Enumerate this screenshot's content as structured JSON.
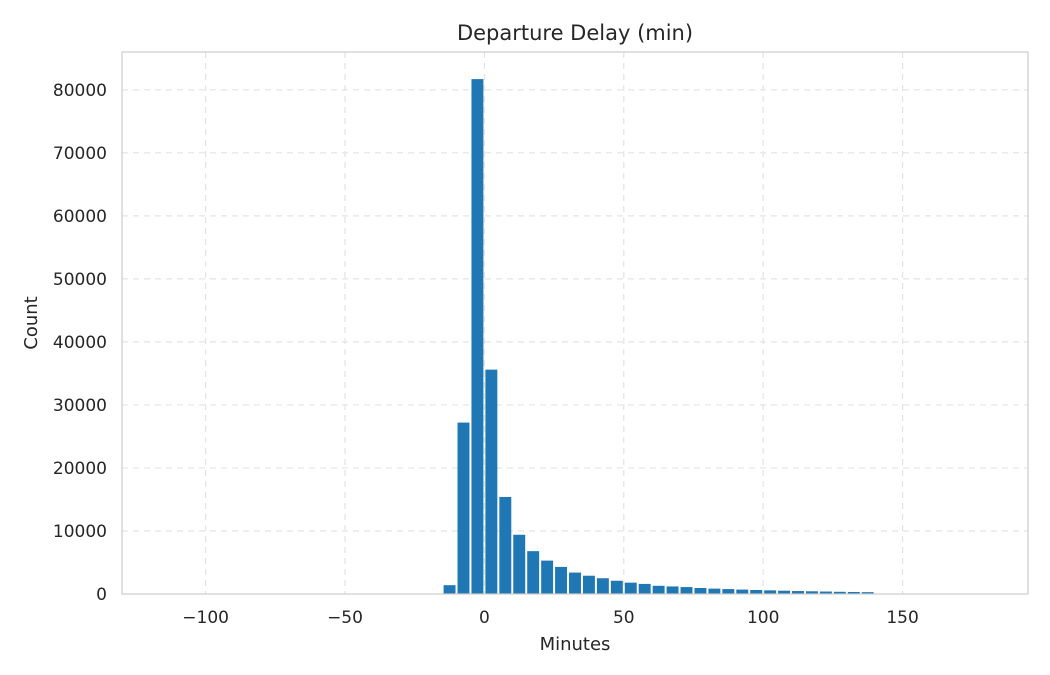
{
  "chart_data": {
    "type": "bar",
    "title": "Departure Delay (min)",
    "xlabel": "Minutes",
    "ylabel": "Count",
    "xlim": [
      -130,
      195
    ],
    "ylim": [
      0,
      86000
    ],
    "xticks": [
      -100,
      -50,
      0,
      50,
      100,
      150
    ],
    "xtick_labels": [
      "−100",
      "−50",
      "0",
      "50",
      "100",
      "150"
    ],
    "yticks": [
      0,
      10000,
      20000,
      30000,
      40000,
      50000,
      60000,
      70000,
      80000
    ],
    "ytick_labels": [
      "0",
      "10000",
      "20000",
      "30000",
      "40000",
      "50000",
      "60000",
      "70000",
      "80000"
    ],
    "grid": true,
    "bin_width": 5,
    "bins": [
      {
        "x_start": -15,
        "x_end": -10,
        "value": 1400
      },
      {
        "x_start": -10,
        "x_end": -5,
        "value": 27200
      },
      {
        "x_start": -5,
        "x_end": 0,
        "value": 81700
      },
      {
        "x_start": 0,
        "x_end": 5,
        "value": 35600
      },
      {
        "x_start": 5,
        "x_end": 10,
        "value": 15400
      },
      {
        "x_start": 10,
        "x_end": 15,
        "value": 9400
      },
      {
        "x_start": 15,
        "x_end": 20,
        "value": 6800
      },
      {
        "x_start": 20,
        "x_end": 25,
        "value": 5300
      },
      {
        "x_start": 25,
        "x_end": 30,
        "value": 4300
      },
      {
        "x_start": 30,
        "x_end": 35,
        "value": 3400
      },
      {
        "x_start": 35,
        "x_end": 40,
        "value": 2900
      },
      {
        "x_start": 40,
        "x_end": 45,
        "value": 2500
      },
      {
        "x_start": 45,
        "x_end": 50,
        "value": 2100
      },
      {
        "x_start": 50,
        "x_end": 55,
        "value": 1800
      },
      {
        "x_start": 55,
        "x_end": 60,
        "value": 1600
      },
      {
        "x_start": 60,
        "x_end": 65,
        "value": 1300
      },
      {
        "x_start": 65,
        "x_end": 70,
        "value": 1200
      },
      {
        "x_start": 70,
        "x_end": 75,
        "value": 1100
      },
      {
        "x_start": 75,
        "x_end": 80,
        "value": 950
      },
      {
        "x_start": 80,
        "x_end": 85,
        "value": 850
      },
      {
        "x_start": 85,
        "x_end": 90,
        "value": 780
      },
      {
        "x_start": 90,
        "x_end": 95,
        "value": 700
      },
      {
        "x_start": 95,
        "x_end": 100,
        "value": 640
      },
      {
        "x_start": 100,
        "x_end": 105,
        "value": 580
      },
      {
        "x_start": 105,
        "x_end": 110,
        "value": 520
      },
      {
        "x_start": 110,
        "x_end": 115,
        "value": 470
      },
      {
        "x_start": 115,
        "x_end": 120,
        "value": 430
      },
      {
        "x_start": 120,
        "x_end": 125,
        "value": 390
      },
      {
        "x_start": 125,
        "x_end": 130,
        "value": 350
      },
      {
        "x_start": 130,
        "x_end": 135,
        "value": 320
      },
      {
        "x_start": 135,
        "x_end": 140,
        "value": 290
      }
    ],
    "colors": {
      "bar": "#1f77b4",
      "background": "#ffffff",
      "frame": "#cccccc",
      "grid": "#e3e3e3",
      "text": "#262626"
    }
  }
}
